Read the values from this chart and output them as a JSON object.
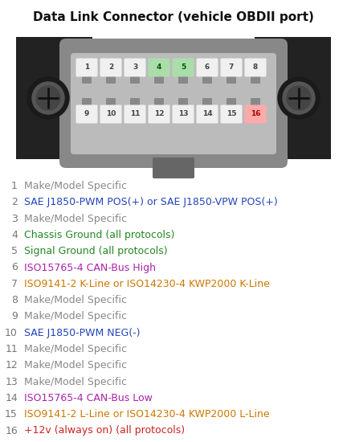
{
  "title": "Data Link Connector (vehicle OBDII port)",
  "title_fontsize": 11,
  "bg_color": "#ffffff",
  "connector": {
    "outer_dark": "#222222",
    "body_gray": "#888888",
    "body_mid": "#999999",
    "inner_light": "#aaaaaa",
    "screw_dark": "#333333",
    "screw_mid": "#777777",
    "tab_color": "#666666",
    "tooth_color": "#888888"
  },
  "pins_row1": [
    1,
    2,
    3,
    4,
    5,
    6,
    7,
    8
  ],
  "pins_row2": [
    9,
    10,
    11,
    12,
    13,
    14,
    15,
    16
  ],
  "pin_bg_default": "#f0f0f0",
  "pin_bg_4": "#aaddaa",
  "pin_bg_5": "#aaddaa",
  "pin_bg_16": "#ffaaaa",
  "pin_text_default": "#444444",
  "pin_text_4": "#005500",
  "pin_text_5": "#005500",
  "pin_text_16": "#aa0000",
  "descriptions": [
    {
      "num": 1,
      "text": "Make/Model Specific",
      "color": "#888888"
    },
    {
      "num": 2,
      "text": "SAE J1850-PWM POS(+) or SAE J1850-VPW POS(+)",
      "color": "#2244bb"
    },
    {
      "num": 3,
      "text": "Make/Model Specific",
      "color": "#888888"
    },
    {
      "num": 4,
      "text": "Chassis Ground (all protocols)",
      "color": "#228822"
    },
    {
      "num": 5,
      "text": "Signal Ground (all protocols)",
      "color": "#228822"
    },
    {
      "num": 6,
      "text": "ISO15765-4 CAN-Bus High",
      "color": "#aa22aa"
    },
    {
      "num": 7,
      "text": "ISO9141-2 K-Line or ISO14230-4 KWP2000 K-Line",
      "color": "#cc7700"
    },
    {
      "num": 8,
      "text": "Make/Model Specific",
      "color": "#888888"
    },
    {
      "num": 9,
      "text": "Make/Model Specific",
      "color": "#888888"
    },
    {
      "num": 10,
      "text": "SAE J1850-PWM NEG(-)",
      "color": "#2244bb"
    },
    {
      "num": 11,
      "text": "Make/Model Specific",
      "color": "#888888"
    },
    {
      "num": 12,
      "text": "Make/Model Specific",
      "color": "#888888"
    },
    {
      "num": 13,
      "text": "Make/Model Specific",
      "color": "#888888"
    },
    {
      "num": 14,
      "text": "ISO15765-4 CAN-Bus Low",
      "color": "#aa22aa"
    },
    {
      "num": 15,
      "text": "ISO9141-2 L-Line or ISO14230-4 KWP2000 L-Line",
      "color": "#cc7700"
    },
    {
      "num": 16,
      "text": "+12v (always on) (all protocols)",
      "color": "#cc2222"
    }
  ]
}
